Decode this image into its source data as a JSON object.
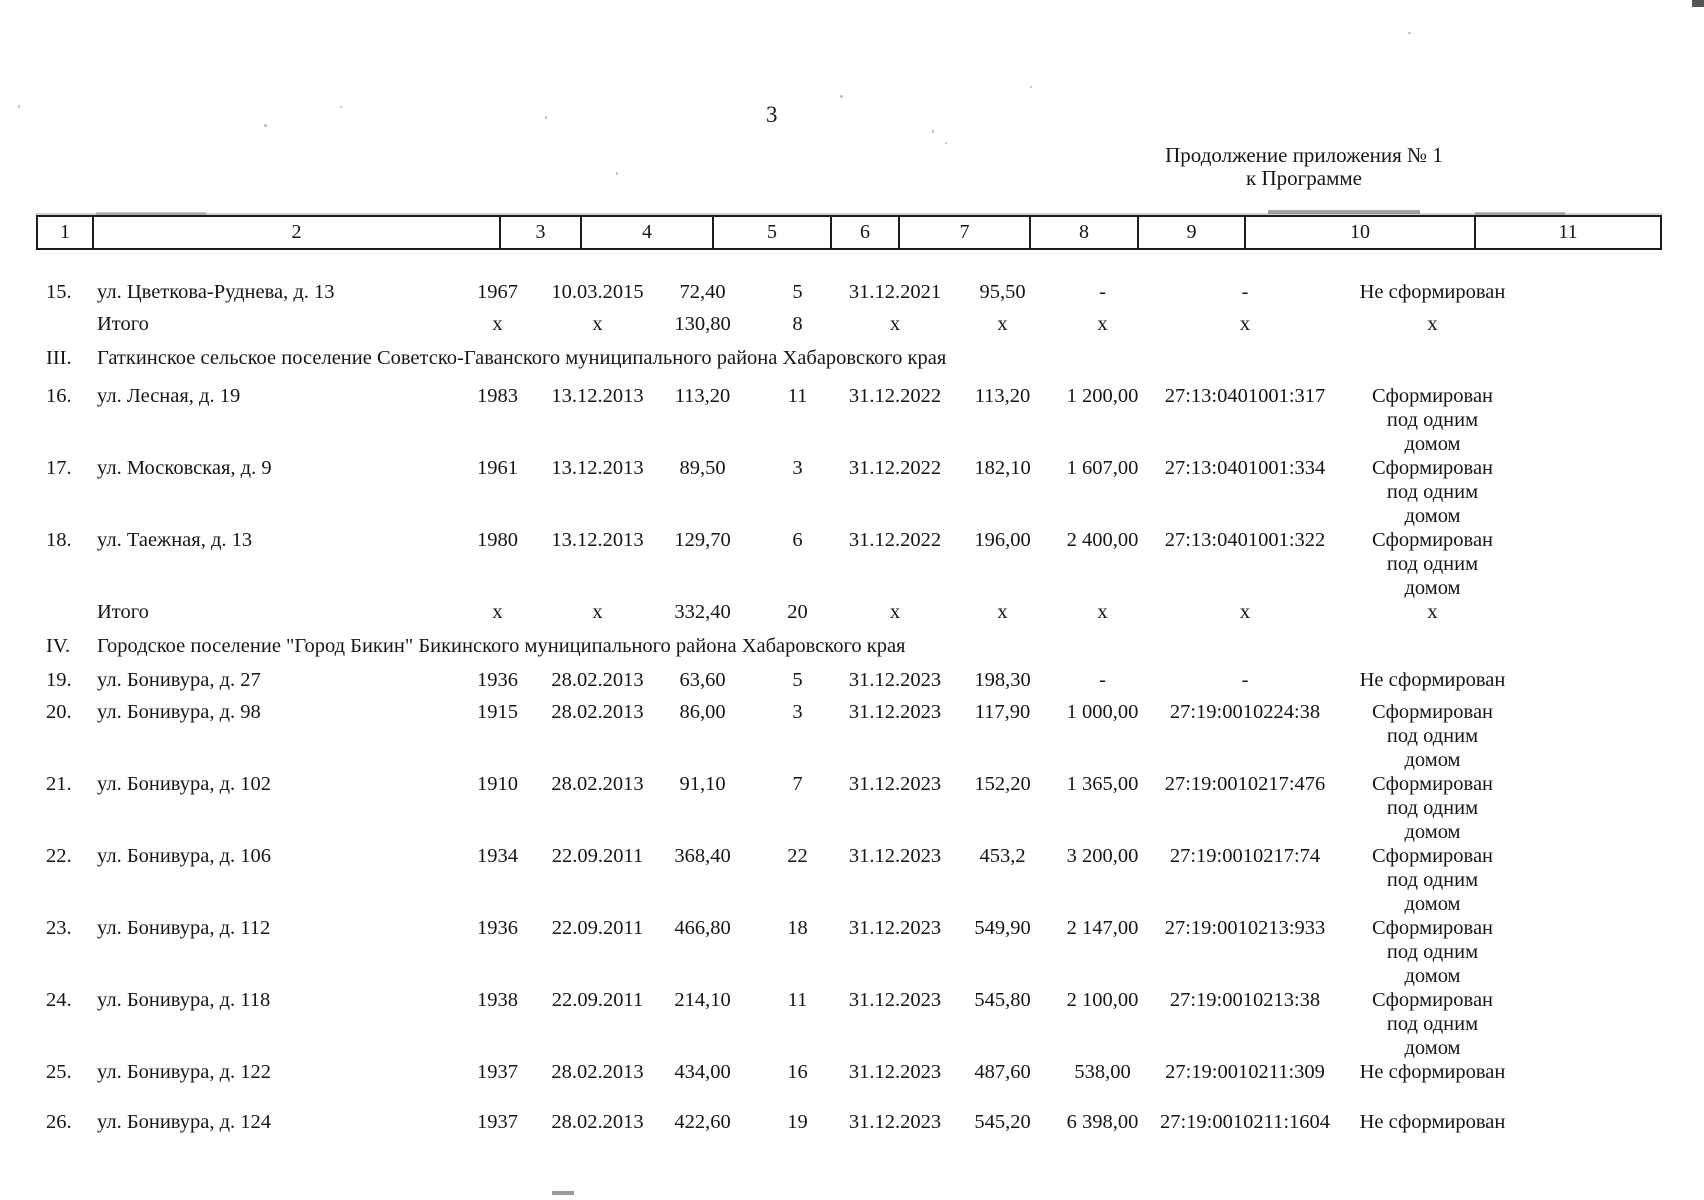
{
  "page": {
    "number": "3",
    "heading_line1": "Продолжение приложения № 1",
    "heading_line2": "к Программе"
  },
  "table": {
    "column_numbers": [
      "1",
      "2",
      "3",
      "4",
      "5",
      "6",
      "7",
      "8",
      "9",
      "10",
      "11"
    ],
    "rows": [
      {
        "type": "data",
        "values": [
          "15.",
          "ул. Цветкова-Руднева, д. 13",
          "1967",
          "10.03.2015",
          "72,40",
          "5",
          "31.12.2021",
          "95,50",
          "-",
          "-",
          "Не сформирован"
        ]
      },
      {
        "type": "total",
        "values": [
          "",
          "Итого",
          "х",
          "х",
          "130,80",
          "8",
          "х",
          "х",
          "х",
          "х",
          "х"
        ]
      },
      {
        "type": "section",
        "values": [
          "III.",
          "Гаткинское сельское поселение Советско-Гаванского муниципального района Хабаровского края"
        ]
      },
      {
        "type": "data",
        "values": [
          "16.",
          "ул. Лесная, д. 19",
          "1983",
          "13.12.2013",
          "113,20",
          "11",
          "31.12.2022",
          "113,20",
          "1 200,00",
          "27:13:0401001:317",
          "Сформирован\nпод одним\nдомом"
        ]
      },
      {
        "type": "data",
        "values": [
          "17.",
          "ул. Московская, д. 9",
          "1961",
          "13.12.2013",
          "89,50",
          "3",
          "31.12.2022",
          "182,10",
          "1 607,00",
          "27:13:0401001:334",
          "Сформирован\nпод одним\nдомом"
        ]
      },
      {
        "type": "data",
        "values": [
          "18.",
          "ул. Таежная, д. 13",
          "1980",
          "13.12.2013",
          "129,70",
          "6",
          "31.12.2022",
          "196,00",
          "2 400,00",
          "27:13:0401001:322",
          "Сформирован\nпод одним\nдомом"
        ]
      },
      {
        "type": "total",
        "values": [
          "",
          "Итого",
          "х",
          "х",
          "332,40",
          "20",
          "х",
          "х",
          "х",
          "х",
          "х"
        ]
      },
      {
        "type": "section",
        "values": [
          "IV.",
          "Городское поселение \"Город Бикин\" Бикинского муниципального района Хабаровского края"
        ]
      },
      {
        "type": "data",
        "values": [
          "19.",
          "ул. Бонивура, д. 27",
          "1936",
          "28.02.2013",
          "63,60",
          "5",
          "31.12.2023",
          "198,30",
          "-",
          "-",
          "Не сформирован"
        ]
      },
      {
        "type": "data",
        "values": [
          "20.",
          "ул. Бонивура, д. 98",
          "1915",
          "28.02.2013",
          "86,00",
          "3",
          "31.12.2023",
          "117,90",
          "1 000,00",
          "27:19:0010224:38",
          "Сформирован\nпод одним\nдомом"
        ]
      },
      {
        "type": "data",
        "values": [
          "21.",
          "ул. Бонивура, д. 102",
          "1910",
          "28.02.2013",
          "91,10",
          "7",
          "31.12.2023",
          "152,20",
          "1 365,00",
          "27:19:0010217:476",
          "Сформирован\nпод одним\nдомом"
        ]
      },
      {
        "type": "data",
        "values": [
          "22.",
          "ул. Бонивура, д. 106",
          "1934",
          "22.09.2011",
          "368,40",
          "22",
          "31.12.2023",
          "453,2",
          "3 200,00",
          "27:19:0010217:74",
          "Сформирован\nпод одним\nдомом"
        ]
      },
      {
        "type": "data",
        "values": [
          "23.",
          "ул. Бонивура, д. 112",
          "1936",
          "22.09.2011",
          "466,80",
          "18",
          "31.12.2023",
          "549,90",
          "2 147,00",
          "27:19:0010213:933",
          "Сформирован\nпод одним\nдомом"
        ]
      },
      {
        "type": "data",
        "values": [
          "24.",
          "ул. Бонивура, д. 118",
          "1938",
          "22.09.2011",
          "214,10",
          "11",
          "31.12.2023",
          "545,80",
          "2 100,00",
          "27:19:0010213:38",
          "Сформирован\nпод одним\nдомом"
        ]
      },
      {
        "type": "data",
        "values": [
          "25.",
          "ул. Бонивура, д. 122",
          "1937",
          "28.02.2013",
          "434,00",
          "16",
          "31.12.2023",
          "487,60",
          "538,00",
          "27:19:0010211:309",
          "Не сформирован"
        ]
      },
      {
        "type": "data",
        "values": [
          "26.",
          "ул. Бонивура, д. 124",
          "1937",
          "28.02.2013",
          "422,60",
          "19",
          "31.12.2023",
          "545,20",
          "6 398,00",
          "27:19:0010211:1604",
          "Не сформирован"
        ]
      }
    ]
  }
}
